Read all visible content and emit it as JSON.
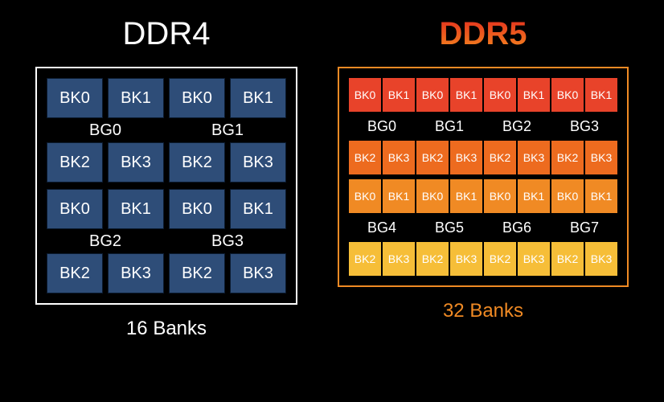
{
  "ddr4": {
    "title": "DDR4",
    "footer": "16 Banks",
    "title_color": "#ffffff",
    "footer_color": "#ffffff",
    "border_color": "#ffffff",
    "cell_bg": "#2e4d78",
    "cell_border": "#0b1a2e",
    "groups_top": [
      "BG0",
      "BG1"
    ],
    "groups_bottom": [
      "BG2",
      "BG3"
    ],
    "banks_top": [
      "BK0",
      "BK1"
    ],
    "banks_bottom": [
      "BK2",
      "BK3"
    ]
  },
  "ddr5": {
    "title": "DDR5",
    "footer": "32 Banks",
    "footer_color": "#f08a24",
    "border_color": "#f08a24",
    "row_colors": [
      "#e8432a",
      "#ed6b1f",
      "#f08a24",
      "#f3a62c",
      "#f6be38",
      "#f6be38"
    ],
    "groups_top": [
      "BG0",
      "BG1",
      "BG2",
      "BG3"
    ],
    "groups_bottom": [
      "BG4",
      "BG5",
      "BG6",
      "BG7"
    ],
    "banks_top": [
      "BK0",
      "BK1"
    ],
    "banks_bottom": [
      "BK2",
      "BK3"
    ]
  }
}
